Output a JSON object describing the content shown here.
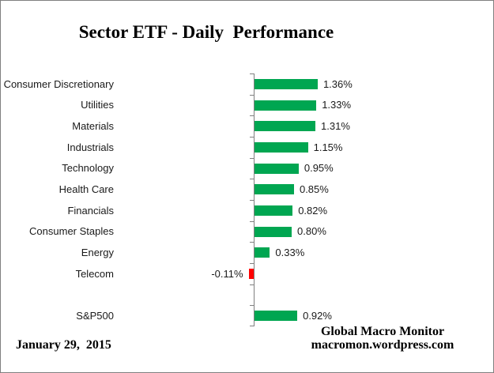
{
  "window": {
    "background": "#ffffff",
    "border_color": "#7f7f7f"
  },
  "colors": {
    "positive_bar": "#00A651",
    "negative_bar": "#FF0000",
    "axis": "#808080",
    "text": "#1a1a1a",
    "title_text": "#000000"
  },
  "footer": {
    "date": "January 29,  2015",
    "attribution_line1": "Global Macro Monitor",
    "attribution_line2": "macromon.wordpress.com"
  },
  "chart_data": {
    "type": "bar",
    "orientation": "horizontal",
    "title": "Sector ETF - Daily  Performance",
    "categories": [
      "Consumer Discretionary",
      "Utilities",
      "Materials",
      "Industrials",
      "Technology",
      "Health Care",
      "Financials",
      "Consumer Staples",
      "Energy",
      "Telecom",
      "",
      "S&P500"
    ],
    "values": [
      1.36,
      1.33,
      1.31,
      1.15,
      0.95,
      0.85,
      0.82,
      0.8,
      0.33,
      -0.11,
      null,
      0.92
    ],
    "value_labels": [
      "1.36%",
      "1.33%",
      "1.31%",
      "1.15%",
      "0.95%",
      "0.85%",
      "0.82%",
      "0.80%",
      "0.33%",
      "-0.11%",
      "",
      "0.92%"
    ],
    "xlabel": "",
    "ylabel": "",
    "xlim": [
      -0.25,
      1.6
    ],
    "grid": false,
    "legend": "none",
    "value_label_position": "outside-end",
    "unit": "percent"
  }
}
